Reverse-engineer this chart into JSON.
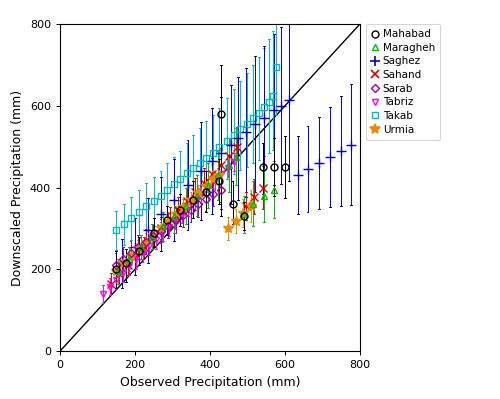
{
  "stations": {
    "Mahabad": {
      "color": "#000000",
      "marker": "o",
      "markersize": 5,
      "fillstyle": "none",
      "points": [
        [
          150,
          200,
          155,
          245
        ],
        [
          175,
          215,
          170,
          250
        ],
        [
          210,
          245,
          210,
          280
        ],
        [
          250,
          290,
          255,
          325
        ],
        [
          285,
          320,
          285,
          355
        ],
        [
          320,
          345,
          305,
          385
        ],
        [
          355,
          370,
          325,
          415
        ],
        [
          390,
          390,
          340,
          440
        ],
        [
          425,
          415,
          360,
          470
        ],
        [
          430,
          580,
          330,
          700
        ],
        [
          460,
          360,
          310,
          415
        ],
        [
          490,
          330,
          295,
          365
        ],
        [
          540,
          450,
          385,
          510
        ],
        [
          570,
          450,
          380,
          520
        ],
        [
          600,
          450,
          375,
          525
        ]
      ]
    },
    "Maragheh": {
      "color": "#00bb00",
      "marker": "^",
      "markersize": 5,
      "fillstyle": "none",
      "points": [
        [
          155,
          195,
          165,
          225
        ],
        [
          185,
          225,
          195,
          255
        ],
        [
          215,
          255,
          225,
          285
        ],
        [
          245,
          280,
          250,
          310
        ],
        [
          275,
          305,
          270,
          340
        ],
        [
          305,
          330,
          290,
          370
        ],
        [
          335,
          355,
          310,
          400
        ],
        [
          365,
          380,
          330,
          430
        ],
        [
          395,
          405,
          350,
          460
        ],
        [
          420,
          430,
          370,
          490
        ],
        [
          450,
          455,
          390,
          520
        ],
        [
          470,
          475,
          405,
          545
        ],
        [
          490,
          335,
          290,
          380
        ],
        [
          515,
          360,
          305,
          415
        ],
        [
          545,
          380,
          315,
          445
        ],
        [
          570,
          395,
          325,
          465
        ]
      ]
    },
    "Saghez": {
      "color": "#0000cc",
      "marker": "+",
      "markersize": 7,
      "fillstyle": "full",
      "points": [
        [
          165,
          215,
          155,
          275
        ],
        [
          200,
          255,
          185,
          325
        ],
        [
          235,
          295,
          215,
          375
        ],
        [
          270,
          335,
          245,
          425
        ],
        [
          305,
          370,
          270,
          470
        ],
        [
          340,
          405,
          295,
          515
        ],
        [
          375,
          440,
          320,
          560
        ],
        [
          405,
          465,
          335,
          595
        ],
        [
          430,
          485,
          348,
          622
        ],
        [
          455,
          505,
          360,
          650
        ],
        [
          475,
          520,
          370,
          670
        ],
        [
          495,
          535,
          378,
          692
        ],
        [
          520,
          555,
          388,
          722
        ],
        [
          545,
          570,
          395,
          745
        ],
        [
          570,
          590,
          405,
          775
        ],
        [
          590,
          600,
          408,
          792
        ],
        [
          610,
          615,
          415,
          815
        ],
        [
          635,
          430,
          335,
          525
        ],
        [
          660,
          445,
          340,
          550
        ],
        [
          690,
          460,
          348,
          572
        ],
        [
          720,
          475,
          352,
          598
        ],
        [
          750,
          490,
          355,
          625
        ],
        [
          775,
          505,
          358,
          652
        ]
      ]
    },
    "Sahand": {
      "color": "#dd0000",
      "marker": "x",
      "markersize": 6,
      "fillstyle": "full",
      "points": [
        [
          135,
          165,
          140,
          190
        ],
        [
          158,
          188,
          163,
          213
        ],
        [
          180,
          210,
          185,
          235
        ],
        [
          202,
          232,
          207,
          257
        ],
        [
          225,
          255,
          230,
          280
        ],
        [
          248,
          278,
          252,
          305
        ],
        [
          270,
          300,
          274,
          328
        ],
        [
          293,
          323,
          296,
          352
        ],
        [
          315,
          346,
          318,
          376
        ],
        [
          338,
          368,
          340,
          400
        ],
        [
          360,
          390,
          362,
          424
        ],
        [
          383,
          412,
          383,
          448
        ],
        [
          405,
          434,
          404,
          472
        ],
        [
          428,
          456,
          425,
          497
        ],
        [
          450,
          478,
          446,
          522
        ],
        [
          473,
          500,
          467,
          547
        ],
        [
          495,
          355,
          320,
          390
        ],
        [
          518,
          378,
          335,
          421
        ],
        [
          540,
          400,
          348,
          452
        ]
      ]
    },
    "Sarab": {
      "color": "#9900aa",
      "marker": "D",
      "markersize": 4,
      "fillstyle": "none",
      "points": [
        [
          148,
          210,
          180,
          240
        ],
        [
          168,
          225,
          195,
          255
        ],
        [
          188,
          240,
          210,
          270
        ],
        [
          208,
          255,
          225,
          285
        ],
        [
          228,
          268,
          238,
          298
        ],
        [
          248,
          281,
          251,
          311
        ],
        [
          268,
          294,
          264,
          324
        ],
        [
          288,
          307,
          277,
          337
        ],
        [
          308,
          320,
          290,
          350
        ],
        [
          328,
          333,
          303,
          363
        ],
        [
          348,
          346,
          316,
          376
        ],
        [
          368,
          359,
          329,
          389
        ],
        [
          388,
          372,
          342,
          402
        ],
        [
          408,
          385,
          355,
          415
        ],
        [
          428,
          395,
          365,
          425
        ]
      ]
    },
    "Tabriz": {
      "color": "#ff00ff",
      "marker": "v",
      "markersize": 5,
      "fillstyle": "none",
      "points": [
        [
          115,
          140,
          118,
          162
        ],
        [
          133,
          158,
          136,
          180
        ],
        [
          150,
          175,
          153,
          197
        ],
        [
          168,
          192,
          170,
          214
        ],
        [
          185,
          208,
          186,
          230
        ],
        [
          202,
          224,
          202,
          246
        ],
        [
          220,
          240,
          218,
          262
        ],
        [
          237,
          256,
          234,
          278
        ],
        [
          255,
          272,
          250,
          294
        ],
        [
          272,
          288,
          266,
          310
        ],
        [
          290,
          304,
          282,
          326
        ],
        [
          307,
          320,
          298,
          342
        ],
        [
          325,
          336,
          314,
          358
        ],
        [
          342,
          352,
          330,
          374
        ],
        [
          360,
          368,
          346,
          390
        ],
        [
          377,
          384,
          362,
          406
        ],
        [
          395,
          400,
          378,
          422
        ],
        [
          412,
          416,
          394,
          438
        ],
        [
          430,
          432,
          410,
          454
        ],
        [
          447,
          448,
          426,
          470
        ],
        [
          465,
          462,
          440,
          484
        ]
      ]
    },
    "Takab": {
      "color": "#00bbbb",
      "marker": "s",
      "markersize": 5,
      "fillstyle": "none",
      "points": [
        [
          150,
          295,
          248,
          342
        ],
        [
          170,
          310,
          260,
          360
        ],
        [
          190,
          325,
          272,
          378
        ],
        [
          210,
          340,
          283,
          395
        ],
        [
          230,
          355,
          295,
          410
        ],
        [
          250,
          368,
          306,
          425
        ],
        [
          268,
          380,
          316,
          440
        ],
        [
          285,
          395,
          328,
          460
        ],
        [
          303,
          408,
          338,
          475
        ],
        [
          320,
          420,
          348,
          490
        ],
        [
          338,
          435,
          360,
          510
        ],
        [
          355,
          448,
          370,
          528
        ],
        [
          373,
          460,
          380,
          545
        ],
        [
          390,
          473,
          390,
          562
        ],
        [
          408,
          485,
          400,
          578
        ],
        [
          425,
          498,
          410,
          595
        ],
        [
          445,
          513,
          422,
          618
        ],
        [
          463,
          528,
          432,
          640
        ],
        [
          480,
          542,
          442,
          660
        ],
        [
          498,
          556,
          450,
          680
        ],
        [
          515,
          570,
          460,
          700
        ],
        [
          530,
          583,
          468,
          720
        ],
        [
          545,
          596,
          476,
          742
        ],
        [
          558,
          610,
          484,
          762
        ],
        [
          568,
          625,
          492,
          782
        ],
        [
          575,
          695,
          578,
          808
        ]
      ]
    },
    "Urmia": {
      "color": "#ee8800",
      "marker": "*",
      "markersize": 7,
      "fillstyle": "full",
      "points": [
        [
          148,
          195,
          175,
          215
        ],
        [
          168,
          215,
          195,
          235
        ],
        [
          188,
          233,
          213,
          253
        ],
        [
          208,
          251,
          231,
          271
        ],
        [
          228,
          268,
          248,
          288
        ],
        [
          248,
          285,
          265,
          305
        ],
        [
          268,
          302,
          282,
          322
        ],
        [
          288,
          319,
          299,
          339
        ],
        [
          308,
          336,
          316,
          356
        ],
        [
          328,
          353,
          333,
          373
        ],
        [
          348,
          370,
          350,
          390
        ],
        [
          368,
          387,
          367,
          407
        ],
        [
          388,
          404,
          384,
          424
        ],
        [
          408,
          420,
          400,
          440
        ],
        [
          425,
          430,
          408,
          452
        ],
        [
          448,
          300,
          272,
          328
        ],
        [
          468,
          318,
          288,
          348
        ],
        [
          488,
          338,
          303,
          373
        ],
        [
          508,
          355,
          316,
          394
        ]
      ]
    }
  },
  "xlabel": "Observed Precipitation (mm)",
  "ylabel": "Downscaled Precipitation (mm)",
  "xlim": [
    0,
    800
  ],
  "ylim": [
    0,
    800
  ],
  "xticks": [
    0,
    200,
    400,
    600,
    800
  ],
  "yticks": [
    0,
    200,
    400,
    600,
    800
  ],
  "diagonal_color": "#000000",
  "background_color": "#ffffff",
  "legend_labels": [
    "Mahabad",
    "Maragheh",
    "Saghez",
    "Sahand",
    "Sarab",
    "Tabriz",
    "Takab",
    "Urmia"
  ],
  "legend_colors": [
    "#000000",
    "#00bb00",
    "#0000cc",
    "#dd0000",
    "#9900aa",
    "#ff00ff",
    "#00bbbb",
    "#ee8800"
  ],
  "legend_markers": [
    "o",
    "^",
    "+",
    "x",
    "D",
    "v",
    "s",
    "*"
  ],
  "legend_fillstyles": [
    "none",
    "none",
    "full",
    "full",
    "none",
    "none",
    "none",
    "full"
  ]
}
